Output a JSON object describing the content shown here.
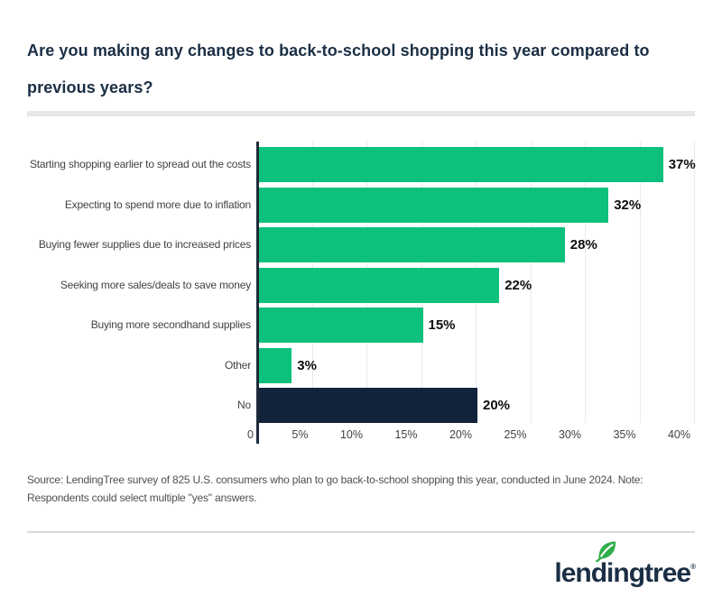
{
  "chart_data": {
    "type": "bar",
    "orientation": "horizontal",
    "title": "Are you making any changes to back-to-school shopping this year compared to previous years?",
    "categories": [
      "Starting shopping earlier to spread out the costs",
      "Expecting to spend more due to inflation",
      "Buying fewer supplies due to increased prices",
      "Seeking more sales/deals to save money",
      "Buying more secondhand supplies",
      "Other",
      "No"
    ],
    "values": [
      37,
      32,
      28,
      22,
      15,
      3,
      20
    ],
    "value_labels": [
      "37%",
      "32%",
      "28%",
      "22%",
      "15%",
      "3%",
      "20%"
    ],
    "bar_colors": [
      "#0dc17d",
      "#0dc17d",
      "#0dc17d",
      "#0dc17d",
      "#0dc17d",
      "#0dc17d",
      "#13233b"
    ],
    "x_tick_values": [
      0,
      5,
      10,
      15,
      20,
      25,
      30,
      35,
      40
    ],
    "x_tick_labels": [
      "0",
      "5%",
      "10%",
      "15%",
      "20%",
      "25%",
      "30%",
      "35%",
      "40%"
    ],
    "xlim": [
      0,
      40
    ],
    "grid": "vertical",
    "gridline_color": "#eaeaea",
    "legend": "none",
    "xlabel": "",
    "ylabel": ""
  },
  "source_note": {
    "line1": "Source: LendingTree survey of 825 U.S. consumers who plan to go back-to-school shopping this year, conducted in June 2024. Note:",
    "line2": "Respondents could select multiple \"yes\" answers."
  },
  "logo": {
    "text": "lendingtree",
    "trademark": "®"
  },
  "colors": {
    "accent_green": "#0dc17d",
    "bar_navy": "#13233b",
    "title_navy": "#1b2f45",
    "axis_dark": "#1d2a38",
    "divider_gray": "#e7e7e7",
    "footer_divider_gray": "#d9d9d9",
    "label_gray": "#424242",
    "source_gray": "#4f4f4f",
    "leaf_green": "#2fae4c"
  }
}
